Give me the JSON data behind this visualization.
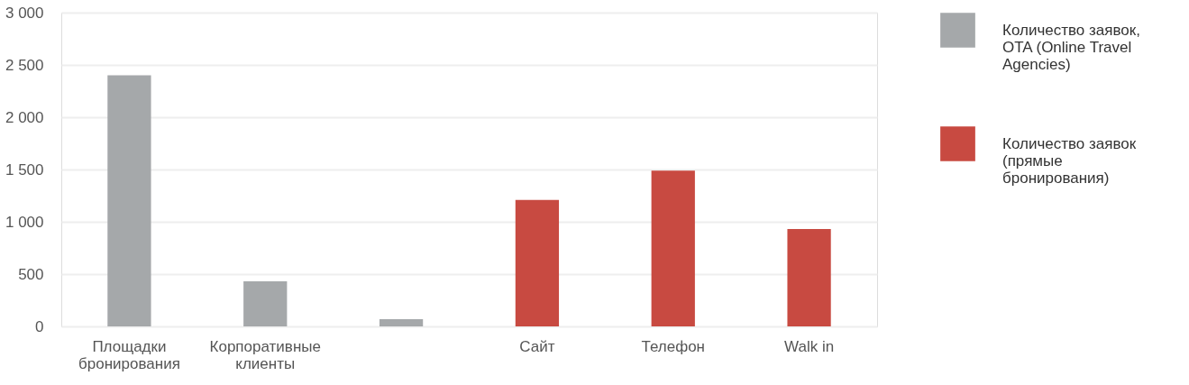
{
  "chart_data": {
    "type": "bar",
    "categories": [
      "Площадки бронирования",
      "Корпоративные клиенты",
      null,
      "Сайт",
      "Телефон",
      "Walk in"
    ],
    "series": [
      {
        "name": "Количество заявок, OTA (Online Travel Agencies)",
        "color": "#a5a8aa",
        "values": [
          2400,
          430,
          70,
          null,
          null,
          null
        ]
      },
      {
        "name": "Количество заявок (прямые бронирования)",
        "color": "#c84a41",
        "values": [
          null,
          null,
          null,
          1210,
          1490,
          930
        ]
      }
    ],
    "ylim": [
      0,
      3000
    ],
    "yticks": [
      0,
      500,
      {
        "value": 1000,
        "label": "1 000"
      },
      {
        "value": 1500,
        "label": "1 500"
      },
      {
        "value": 2000,
        "label": "2 000"
      },
      {
        "value": 2500,
        "label": "2 500"
      },
      {
        "value": 3000,
        "label": "3 000"
      }
    ],
    "grid": "y",
    "legend": "right"
  }
}
